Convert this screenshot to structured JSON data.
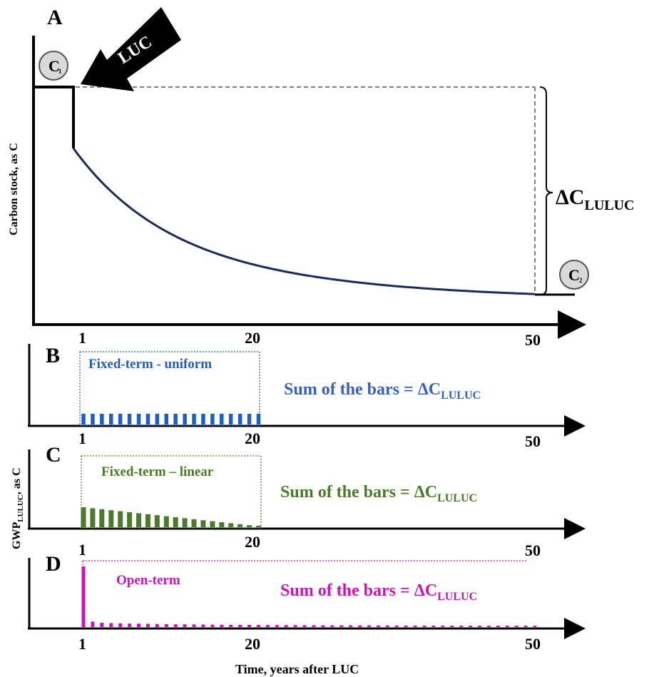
{
  "panels": {
    "A": {
      "letter": "A",
      "ylabel": "Carbon stock, as C",
      "arrow_label": "LUC",
      "c1_label": "C",
      "c1_sub": "1",
      "c2_label": "C",
      "c2_sub": "2",
      "delta_main": "ΔC",
      "delta_sub": "LULUC",
      "ticks": [
        "1",
        "20",
        "50"
      ]
    },
    "B": {
      "letter": "B",
      "box_label": "Fixed-term - uniform",
      "sum_main": "Sum of the bars = ΔC",
      "sum_sub": "LULUC",
      "ticks": [
        "1",
        "20",
        "50"
      ],
      "color": "#1f5fbf"
    },
    "C": {
      "letter": "C",
      "box_label": "Fixed-term – linear",
      "sum_main": "Sum of the bars = ΔC",
      "sum_sub": "LULUC",
      "ticks": [
        "1",
        "20",
        "50"
      ],
      "color": "#4a7a2a"
    },
    "D": {
      "letter": "D",
      "box_label": "Open-term",
      "sum_main": "Sum of the bars = ΔC",
      "sum_sub": "LULUC",
      "ticks": [
        "1",
        "20",
        "50"
      ],
      "color": "#cc14b8"
    }
  },
  "shared_ylabel_main": "GWP",
  "shared_ylabel_sub": "LULUC",
  "shared_ylabel_tail": ", as C",
  "xlabel": "Time, years after LUC",
  "colors": {
    "curve": "#1a2a5a",
    "axis": "#000000",
    "dashed": "#555555"
  },
  "chart_data": [
    {
      "type": "bar",
      "panel": "B",
      "x": [
        1,
        2,
        3,
        4,
        5,
        6,
        7,
        8,
        9,
        10,
        11,
        12,
        13,
        14,
        15,
        16,
        17,
        18,
        19,
        20
      ],
      "values": [
        1,
        1,
        1,
        1,
        1,
        1,
        1,
        1,
        1,
        1,
        1,
        1,
        1,
        1,
        1,
        1,
        1,
        1,
        1,
        1
      ]
    },
    {
      "type": "bar",
      "panel": "C",
      "x": [
        1,
        2,
        3,
        4,
        5,
        6,
        7,
        8,
        9,
        10,
        11,
        12,
        13,
        14,
        15,
        16,
        17,
        18,
        19,
        20
      ],
      "values": [
        20,
        19,
        18,
        17,
        16,
        15,
        14,
        13,
        12,
        11,
        10,
        9,
        8,
        7,
        6,
        5,
        4,
        3,
        2,
        1
      ]
    },
    {
      "type": "bar",
      "panel": "D",
      "x": [
        1,
        2,
        3,
        4,
        5,
        6,
        7,
        8,
        9,
        10,
        11,
        12,
        13,
        14,
        15,
        16,
        17,
        18,
        19,
        20,
        21,
        22,
        23,
        24,
        25,
        26,
        27,
        28,
        29,
        30,
        31,
        32,
        33,
        34,
        35,
        36,
        37,
        38,
        39,
        40,
        41,
        42,
        43,
        44,
        45,
        46,
        47,
        48,
        49,
        50
      ],
      "values": [
        100,
        9,
        7,
        6.5,
        6,
        5.8,
        5.5,
        5.3,
        5,
        4.8,
        4.6,
        4.5,
        4.3,
        4.2,
        4,
        3.9,
        3.8,
        3.7,
        3.6,
        3.5,
        3.4,
        3.3,
        3.3,
        3.2,
        3.1,
        3.1,
        3,
        3,
        2.9,
        2.9,
        2.8,
        2.8,
        2.7,
        2.7,
        2.6,
        2.6,
        2.6,
        2.5,
        2.5,
        2.5,
        2.4,
        2.4,
        2.4,
        2.3,
        2.3,
        2.3,
        2.3,
        2.2,
        2.2,
        2.2
      ]
    }
  ]
}
